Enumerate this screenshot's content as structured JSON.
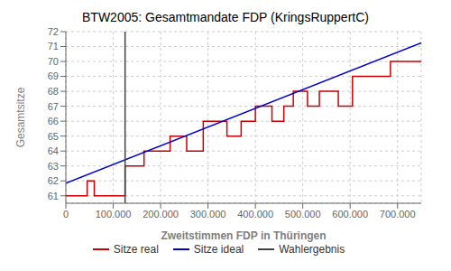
{
  "chart_data": {
    "type": "line",
    "title": "BTW2005: Gesamtmandate FDP (KringsRuppertC)",
    "xlabel": "Zweitstimmen FDP in Thüringen",
    "ylabel": "Gesamtsitze",
    "xlim": [
      0,
      750000
    ],
    "ylim": [
      60.5,
      72.0
    ],
    "xticks": [
      0,
      {
        "value": 100000,
        "label": "100.000"
      },
      {
        "value": 200000,
        "label": "200.000"
      },
      {
        "value": 300000,
        "label": "300.000"
      },
      {
        "value": 400000,
        "label": "400.000"
      },
      {
        "value": 500000,
        "label": "500.000"
      },
      {
        "value": 600000,
        "label": "600.000"
      },
      {
        "value": 700000,
        "label": "700.000"
      }
    ],
    "yticks": [
      61,
      62,
      63,
      64,
      65,
      66,
      67,
      68,
      69,
      70,
      71,
      72
    ],
    "grid": true,
    "legend": "bottom",
    "series": [
      {
        "name": "Sitze real",
        "color": "#cc0000",
        "x": [
          0,
          45000,
          45000,
          60000,
          60000,
          125000,
          125000,
          165000,
          165000,
          220000,
          220000,
          255000,
          255000,
          290000,
          290000,
          340000,
          340000,
          370000,
          370000,
          400000,
          400000,
          435000,
          435000,
          460000,
          460000,
          480000,
          480000,
          510000,
          510000,
          535000,
          535000,
          575000,
          575000,
          605000,
          605000,
          685000,
          685000,
          750000
        ],
        "values": [
          61,
          61,
          62,
          62,
          61,
          61,
          63,
          63,
          64,
          64,
          65,
          65,
          64,
          64,
          66,
          66,
          65,
          65,
          66,
          66,
          67,
          67,
          66,
          66,
          67,
          67,
          68,
          68,
          67,
          67,
          68,
          68,
          67,
          67,
          69,
          69,
          70,
          70
        ]
      },
      {
        "name": "Sitze ideal",
        "color": "#0000cc",
        "x": [
          0,
          750000
        ],
        "values": [
          61.85,
          71.25
        ]
      },
      {
        "name": "Wahlergebnis",
        "type": "vline",
        "color": "#404040",
        "x": 125000
      }
    ]
  }
}
